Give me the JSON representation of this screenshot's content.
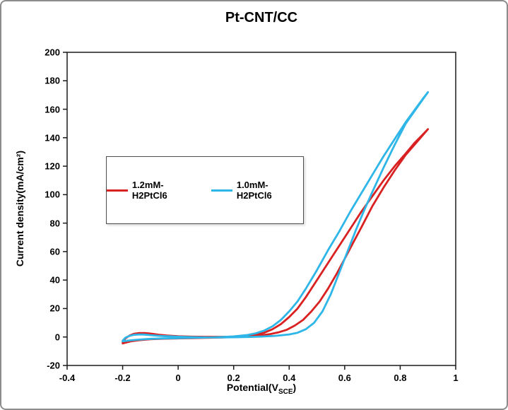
{
  "title": "Pt-CNT/CC",
  "axes": {
    "ylabel": "Current density(mA/cm²)",
    "xlabel_prefix": "Potential(V",
    "xlabel_sub": "SCE",
    "xlabel_suffix": ")"
  },
  "chart_data": {
    "type": "line",
    "title": "Pt-CNT/CC",
    "xlabel": "Potential(V_SCE)",
    "ylabel": "Current density(mA/cm^2)",
    "xlim": [
      -0.4,
      1.0
    ],
    "ylim": [
      -20,
      200
    ],
    "grid": false,
    "legend_position": "inside-upper-left",
    "x_ticks": [
      -0.4,
      -0.2,
      0,
      0.2,
      0.4,
      0.6,
      0.8,
      1
    ],
    "x_tick_labels": [
      "-0.4",
      "-0.2",
      "0",
      "0.2",
      "0.4",
      "0.6",
      "0.8",
      "1"
    ],
    "y_ticks": [
      -20,
      0,
      20,
      40,
      60,
      80,
      100,
      120,
      140,
      160,
      180,
      200
    ],
    "y_tick_labels": [
      "-20",
      "0",
      "20",
      "40",
      "60",
      "80",
      "100",
      "120",
      "140",
      "160",
      "180",
      "200"
    ],
    "series": [
      {
        "name": "1.2mM-H2PtCl6",
        "color": "#d92121",
        "description": "cyclic voltammogram loop, forward then reverse scan, peak ~146 mA/cm2 at 0.9 V",
        "points": [
          [
            -0.2,
            -3.5
          ],
          [
            -0.19,
            -1.0
          ],
          [
            -0.175,
            1.0
          ],
          [
            -0.16,
            2.2
          ],
          [
            -0.14,
            2.8
          ],
          [
            -0.12,
            2.8
          ],
          [
            -0.1,
            2.4
          ],
          [
            -0.07,
            1.6
          ],
          [
            -0.04,
            1.0
          ],
          [
            0.0,
            0.5
          ],
          [
            0.05,
            0.2
          ],
          [
            0.1,
            0.1
          ],
          [
            0.15,
            0.1
          ],
          [
            0.2,
            0.2
          ],
          [
            0.25,
            0.5
          ],
          [
            0.3,
            1.2
          ],
          [
            0.33,
            2.0
          ],
          [
            0.36,
            3.2
          ],
          [
            0.39,
            5.0
          ],
          [
            0.42,
            8.0
          ],
          [
            0.45,
            12
          ],
          [
            0.48,
            18
          ],
          [
            0.51,
            25
          ],
          [
            0.54,
            34
          ],
          [
            0.57,
            44
          ],
          [
            0.6,
            55
          ],
          [
            0.63,
            66
          ],
          [
            0.66,
            77
          ],
          [
            0.7,
            92
          ],
          [
            0.74,
            105
          ],
          [
            0.78,
            117
          ],
          [
            0.82,
            128
          ],
          [
            0.86,
            137
          ],
          [
            0.9,
            146
          ],
          [
            0.88,
            142
          ],
          [
            0.85,
            136
          ],
          [
            0.82,
            129
          ],
          [
            0.78,
            120
          ],
          [
            0.74,
            110
          ],
          [
            0.7,
            99
          ],
          [
            0.66,
            88
          ],
          [
            0.62,
            76
          ],
          [
            0.58,
            64
          ],
          [
            0.54,
            52
          ],
          [
            0.5,
            40
          ],
          [
            0.46,
            28
          ],
          [
            0.43,
            20
          ],
          [
            0.4,
            14
          ],
          [
            0.37,
            9
          ],
          [
            0.34,
            5.5
          ],
          [
            0.31,
            3.0
          ],
          [
            0.28,
            1.6
          ],
          [
            0.25,
            0.8
          ],
          [
            0.2,
            0.0
          ],
          [
            0.15,
            -0.4
          ],
          [
            0.1,
            -0.6
          ],
          [
            0.05,
            -0.8
          ],
          [
            0.0,
            -1.0
          ],
          [
            -0.05,
            -1.2
          ],
          [
            -0.1,
            -1.6
          ],
          [
            -0.14,
            -2.2
          ],
          [
            -0.17,
            -3.0
          ],
          [
            -0.2,
            -4.5
          ]
        ]
      },
      {
        "name": "1.0mM-H2PtCl6",
        "color": "#2eb6e8",
        "description": "cyclic voltammogram loop, forward then reverse scan, peak ~172 mA/cm2 at 0.9 V",
        "points": [
          [
            -0.2,
            -2.5
          ],
          [
            -0.19,
            -0.5
          ],
          [
            -0.175,
            0.8
          ],
          [
            -0.16,
            1.5
          ],
          [
            -0.14,
            1.8
          ],
          [
            -0.12,
            1.7
          ],
          [
            -0.1,
            1.3
          ],
          [
            -0.06,
            0.7
          ],
          [
            0.0,
            0.2
          ],
          [
            0.05,
            -0.1
          ],
          [
            0.1,
            -0.3
          ],
          [
            0.15,
            -0.3
          ],
          [
            0.2,
            -0.2
          ],
          [
            0.25,
            0.0
          ],
          [
            0.3,
            0.3
          ],
          [
            0.35,
            0.8
          ],
          [
            0.4,
            1.8
          ],
          [
            0.43,
            3.0
          ],
          [
            0.46,
            5.5
          ],
          [
            0.49,
            10
          ],
          [
            0.52,
            18
          ],
          [
            0.55,
            30
          ],
          [
            0.58,
            45
          ],
          [
            0.61,
            60
          ],
          [
            0.64,
            75
          ],
          [
            0.67,
            89
          ],
          [
            0.7,
            102
          ],
          [
            0.74,
            119
          ],
          [
            0.78,
            135
          ],
          [
            0.82,
            150
          ],
          [
            0.86,
            161
          ],
          [
            0.9,
            172
          ],
          [
            0.88,
            167
          ],
          [
            0.85,
            159
          ],
          [
            0.82,
            151
          ],
          [
            0.78,
            139
          ],
          [
            0.74,
            127
          ],
          [
            0.7,
            114
          ],
          [
            0.66,
            101
          ],
          [
            0.62,
            88
          ],
          [
            0.58,
            74
          ],
          [
            0.54,
            61
          ],
          [
            0.5,
            47
          ],
          [
            0.46,
            34
          ],
          [
            0.43,
            25
          ],
          [
            0.4,
            18
          ],
          [
            0.37,
            12
          ],
          [
            0.34,
            7.5
          ],
          [
            0.31,
            4.5
          ],
          [
            0.28,
            2.6
          ],
          [
            0.25,
            1.4
          ],
          [
            0.2,
            0.4
          ],
          [
            0.15,
            -0.1
          ],
          [
            0.1,
            -0.4
          ],
          [
            0.05,
            -0.6
          ],
          [
            0.0,
            -0.8
          ],
          [
            -0.05,
            -1.0
          ],
          [
            -0.1,
            -1.3
          ],
          [
            -0.14,
            -1.8
          ],
          [
            -0.17,
            -2.3
          ],
          [
            -0.2,
            -3.0
          ]
        ]
      }
    ]
  }
}
